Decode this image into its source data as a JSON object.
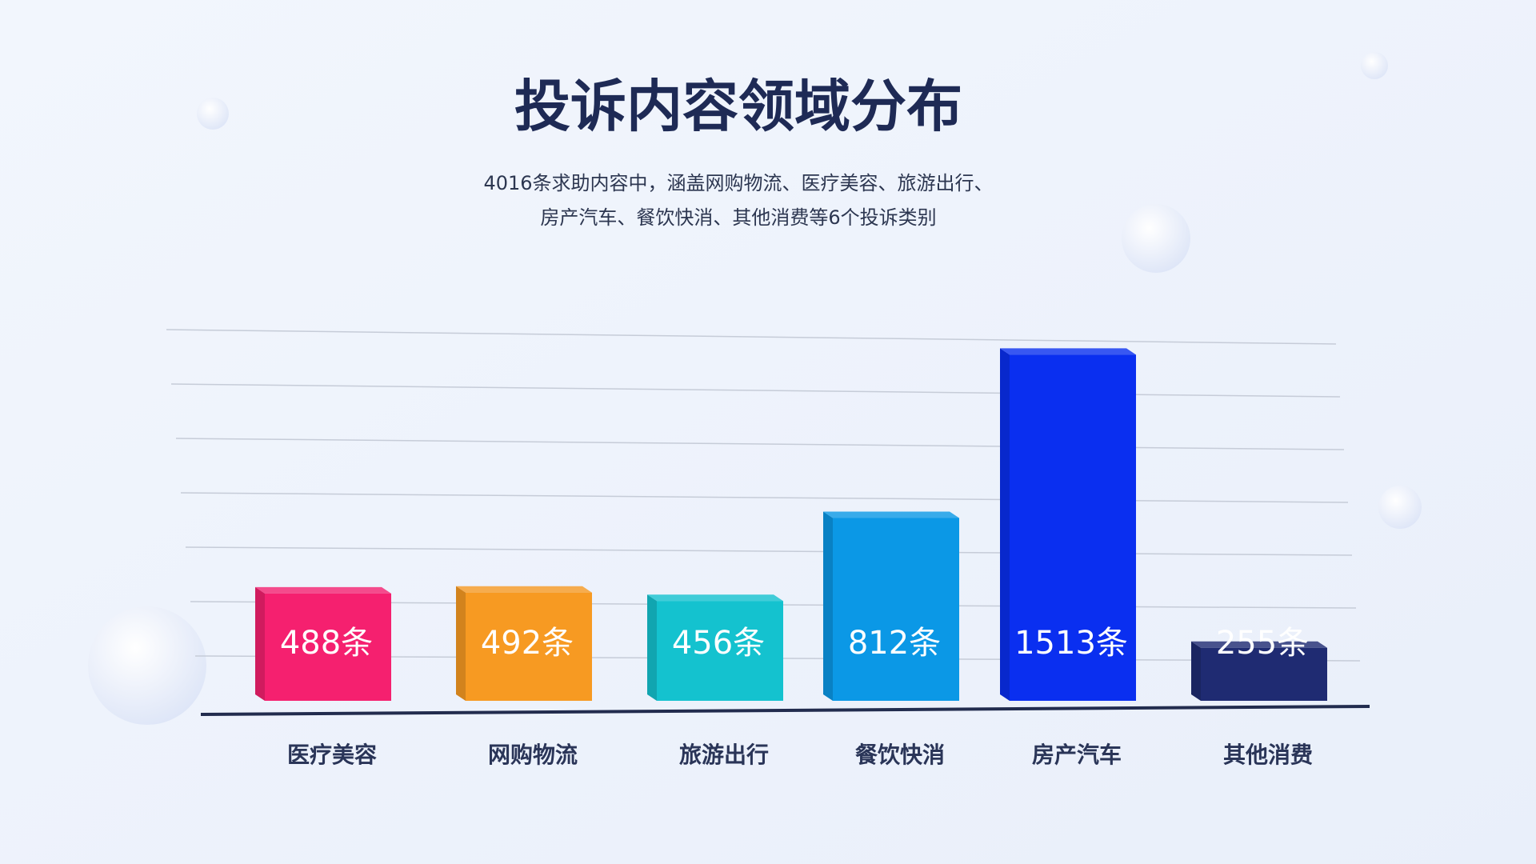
{
  "chart_data": {
    "type": "bar",
    "title": "投诉内容领域分布",
    "subtitle": [
      "4016条求助内容中，涵盖网购物流、医疗美容、旅游出行、",
      "房产汽车、餐饮快消、其他消费等6个投诉类别"
    ],
    "categories": [
      "医疗美容",
      "网购物流",
      "旅游出行",
      "餐饮快消",
      "房产汽车",
      "其他消费"
    ],
    "values": [
      488,
      492,
      456,
      812,
      1513,
      255
    ],
    "value_labels": [
      "488条",
      "492条",
      "456条",
      "812条",
      "1513条",
      "255条"
    ],
    "colors": [
      "#f5206f",
      "#f79a22",
      "#14c2cf",
      "#0b98e6",
      "#0a2ff0",
      "#1f2b72"
    ],
    "ylim": [
      0,
      1600
    ],
    "grid": true
  }
}
